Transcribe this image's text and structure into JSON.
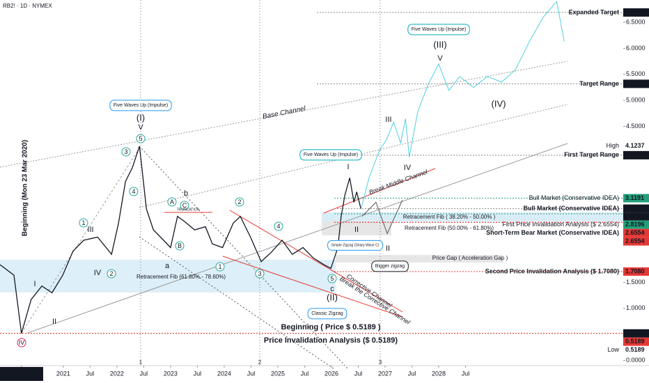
{
  "chart_data": {
    "type": "line",
    "title": "RB2! · 1D · NYMEX",
    "xlim": [
      2019.82,
      2031.44
    ],
    "ylim": [
      -0.1,
      6.93
    ],
    "xticks": [
      {
        "value": 2020.22,
        "label": "Mon 23 Mar '20"
      },
      {
        "value": 2021,
        "label": "2021"
      },
      {
        "value": 2021.5,
        "label": "Jul"
      },
      {
        "value": 2022,
        "label": "2022"
      },
      {
        "value": 2022.5,
        "label": "Jul"
      },
      {
        "value": 2023,
        "label": "2023"
      },
      {
        "value": 2023.5,
        "label": "Jul"
      },
      {
        "value": 2024,
        "label": "2024"
      },
      {
        "value": 2024.5,
        "label": "Jul"
      },
      {
        "value": 2025,
        "label": "2025"
      },
      {
        "value": 2025.5,
        "label": "Jul"
      },
      {
        "value": 2026,
        "label": "2026"
      },
      {
        "value": 2026.5,
        "label": "Jul"
      },
      {
        "value": 2027,
        "label": "2027"
      },
      {
        "value": 2027.5,
        "label": "Jul"
      },
      {
        "value": 2028,
        "label": "2028"
      },
      {
        "value": 2028.5,
        "label": "Jul"
      }
    ],
    "yticks": [
      {
        "value": 6.5,
        "label": "6.5000"
      },
      {
        "value": 6,
        "label": "6.0000"
      },
      {
        "value": 5.5,
        "label": "5.5000"
      },
      {
        "value": 5,
        "label": "5.0000"
      },
      {
        "value": 4.5,
        "label": "4.5000"
      },
      {
        "value": 1.5,
        "label": "1.5000"
      },
      {
        "value": 1,
        "label": "1.0000"
      },
      {
        "value": 0,
        "label": "0.0000"
      }
    ],
    "series": [
      {
        "color": "#131722",
        "x": [
          2019.82,
          2020.08,
          2020.22,
          2020.4,
          2020.6,
          2020.79,
          2020.99,
          2021.18,
          2021.38,
          2021.64,
          2021.9,
          2022.03,
          2022.16,
          2022.29,
          2022.42,
          2022.55,
          2022.68,
          2022.87,
          2023.0,
          2023.13,
          2023.26,
          2023.45,
          2023.65,
          2023.78,
          2023.97,
          2024.17,
          2024.3,
          2024.49,
          2024.69,
          2024.88,
          2025.08,
          2025.27,
          2025.47,
          2025.66,
          2025.86,
          2025.99,
          2026.12,
          2026.18,
          2026.25,
          2026.34,
          2026.42,
          2026.47,
          2026.55
        ],
        "values": [
          1.84,
          1.64,
          0.52,
          1.17,
          1.43,
          1.3,
          1.64,
          2.1,
          2.31,
          2.37,
          2.04,
          2.64,
          3.44,
          3.71,
          4.12,
          2.91,
          2.51,
          2.31,
          2.17,
          2.77,
          2.67,
          2.51,
          2.57,
          2.24,
          2.17,
          2.64,
          2.77,
          2.37,
          1.9,
          2.08,
          2.31,
          2.04,
          2.17,
          1.97,
          1.84,
          1.77,
          2.17,
          2.77,
          3.18,
          3.51,
          3.04,
          3.24,
          2.91
        ]
      },
      {
        "color": "#4dd0e1",
        "x": [
          2026.55,
          2026.7,
          2026.9,
          2027.03,
          2027.16,
          2027.29,
          2027.38,
          2027.45,
          2027.61,
          2027.81,
          2028.0,
          2028.19,
          2028.39,
          2028.65,
          2028.91,
          2029.17,
          2029.43,
          2029.69,
          2029.95,
          2030.2,
          2030.34
        ],
        "values": [
          2.91,
          3.51,
          4.05,
          4.25,
          4.58,
          4.18,
          4.65,
          3.91,
          4.79,
          5.32,
          5.7,
          5.19,
          5.46,
          5.25,
          5.46,
          5.35,
          5.59,
          6.13,
          6.6,
          6.9,
          6.13
        ]
      },
      {
        "color": "#555555",
        "x": [
          2026.57,
          2026.83,
          2027.04,
          2027.32
        ],
        "values": [
          2.77,
          3.04,
          2.44,
          3.08
        ]
      }
    ],
    "levels": [
      {
        "value": 6.6904,
        "label": "6.6904",
        "text": "Expanded Target",
        "color": "#131722"
      },
      {
        "value": 5.3181,
        "label": "5.3181",
        "text": "Target Range",
        "color": "#131722"
      },
      {
        "value": 4.1237,
        "label": "4.1237",
        "text": "High",
        "color": "#ffffff"
      },
      {
        "value": 3.9457,
        "label": "3.9457",
        "text": "First Target Range",
        "color": "#131722"
      },
      {
        "value": 3.1191,
        "label": "3.1191",
        "text": "Bull Market (Conservative IDEA)",
        "color": "#22a07a"
      },
      {
        "value": 2.918,
        "label": "2.9180",
        "text": "Bull Market (Conservative IDEA)",
        "color": "#131722"
      },
      {
        "value": 2.8196,
        "label": "2.8196",
        "text": "First Price Invalidation Analysis ($ 2.6554)",
        "color": "#22a07a"
      },
      {
        "value": 2.6554,
        "label": "2.6554",
        "text": "Short-Term Bear Market (Conservative IDEA)",
        "color": "#e53935"
      },
      {
        "value": 2.6554,
        "label": "2.6554",
        "color": "#e53935"
      },
      {
        "value": 1.708,
        "label": "1.7080",
        "text": "Second Price Invalidation Analysis ($ 1.7080)",
        "color": "#e53935"
      },
      {
        "value": 0.5189,
        "label": "0.5189",
        "color": "#131722"
      },
      {
        "value": 0.5189,
        "label": "0.5189",
        "color": "#e53935"
      },
      {
        "value": 0.5189,
        "label": "0.5189",
        "text": "Low",
        "color": "#ffffff"
      }
    ],
    "countdown": "01:58:24",
    "annotations": [
      "Five Waves Up (Impulse)",
      "(I)",
      "V",
      "5",
      "3",
      "4",
      "III",
      "1",
      "IV",
      "2",
      "I",
      "II",
      "IV",
      "b",
      "A",
      "C",
      "TRUNCATION",
      "B",
      "a",
      "2",
      "1",
      "3",
      "4",
      "Retracement Fib (61.80% - 78.60%)",
      "Base Channel",
      "Five Waves Up (Impulse)",
      "I",
      "II",
      "Simple Zigzag (Sharp Wave C)",
      "5",
      "c",
      "(II)",
      "Classic Zigzag",
      "Corrective Channel",
      "Break the Corrective Channel",
      "Beginning ( Price $ 0.5189 )",
      "Price Invalidation Analysis ($ 0.5189)",
      "III",
      "IV",
      "Break Middle Channel",
      "Retracement Fib ( 38.20% - 50.00% )",
      "Retracement Fib (50.00% - 61.80%)",
      "II",
      "Price Gap ( Acceleration Gap )",
      "Bigger zigzag",
      "Five Waves Up (Impulse)",
      "(III)",
      "V",
      "(IV)",
      "Beginning (Mon 23 Mar 2020)",
      "1",
      "2",
      "3"
    ]
  }
}
